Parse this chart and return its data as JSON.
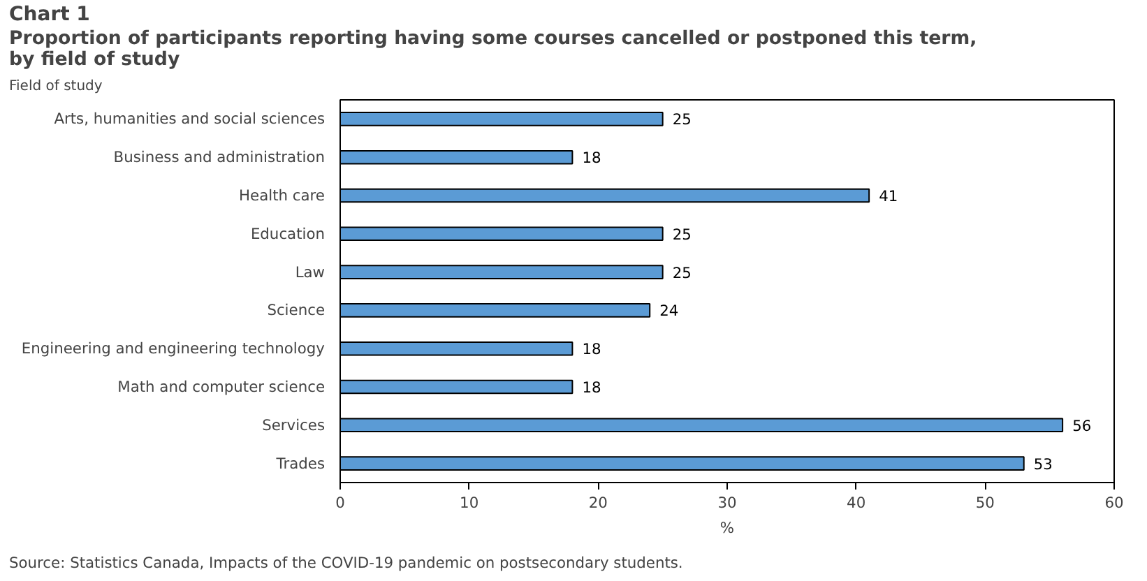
{
  "chart_data": {
    "type": "bar",
    "orientation": "horizontal",
    "title": "Chart 1",
    "subtitle": "Proportion of participants reporting having some courses cancelled or postponed this term, by field of study",
    "ylabel": "Field of study",
    "xlabel": "%",
    "categories": [
      "Arts, humanities and social sciences",
      "Business and administration",
      "Health care",
      "Education",
      "Law",
      "Science",
      "Engineering and engineering technology",
      "Math and computer science",
      "Services",
      "Trades"
    ],
    "values": [
      25,
      18,
      41,
      25,
      25,
      24,
      18,
      18,
      56,
      53
    ],
    "color": "#5b9bd5",
    "xlim": [
      0,
      60
    ],
    "xticks": [
      0,
      10,
      20,
      30,
      40,
      50,
      60
    ],
    "grid": false,
    "data_labels": true,
    "annotations": [
      "Source: Statistics Canada, Impacts of the COVID-19 pandemic on postsecondary students."
    ]
  }
}
